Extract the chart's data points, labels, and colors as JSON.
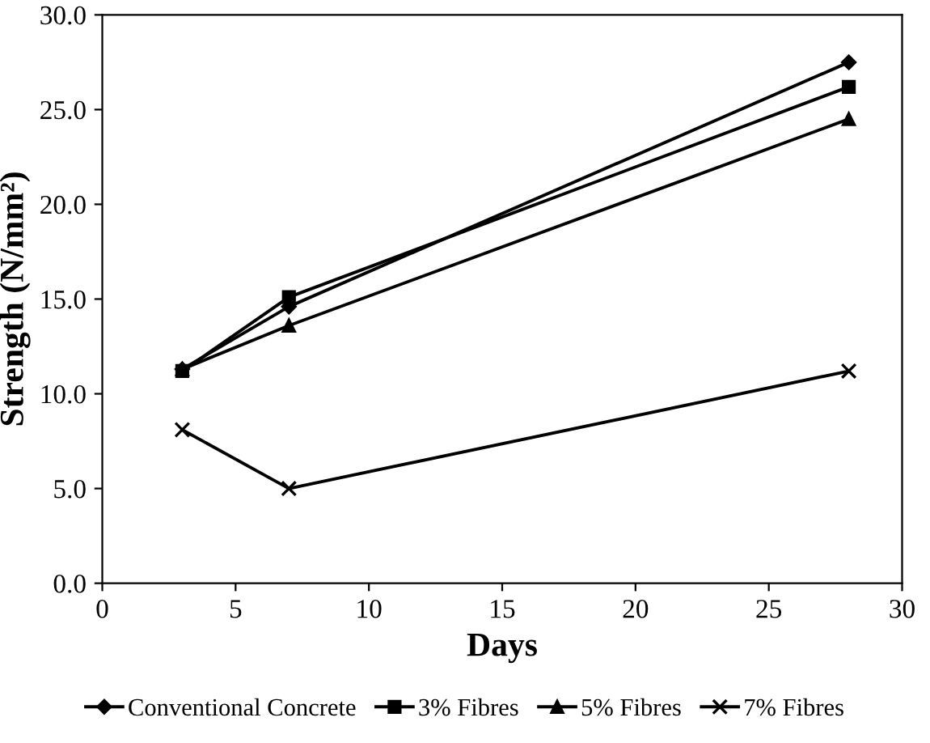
{
  "chart_data": {
    "type": "line",
    "xlabel": "Days",
    "ylabel": "Strength (N/mm²)",
    "x": [
      3,
      7,
      28
    ],
    "series": [
      {
        "name": "Conventional Concrete",
        "color": "#000000",
        "marker": "diamond",
        "values": [
          11.3,
          14.6,
          27.5
        ]
      },
      {
        "name": "3% Fibres",
        "color": "#000000",
        "marker": "square",
        "values": [
          11.2,
          15.1,
          26.2
        ]
      },
      {
        "name": "5% Fibres",
        "color": "#000000",
        "marker": "triangle",
        "values": [
          11.3,
          13.6,
          24.5
        ]
      },
      {
        "name": "7% Fibres",
        "color": "#000000",
        "marker": "cross",
        "values": [
          8.1,
          5.0,
          11.2
        ]
      }
    ],
    "xlim": [
      0,
      30
    ],
    "xticks": [
      0,
      5,
      10,
      15,
      20,
      25,
      30
    ],
    "ylim": [
      0,
      30
    ],
    "yticks": [
      {
        "value": 0,
        "label": "0.0"
      },
      {
        "value": 5,
        "label": "5.0"
      },
      {
        "value": 10,
        "label": "10.0"
      },
      {
        "value": 15,
        "label": "15.0"
      },
      {
        "value": 20,
        "label": "20.0"
      },
      {
        "value": 25,
        "label": "25.0"
      },
      {
        "value": 30,
        "label": "30.0"
      }
    ],
    "grid": false,
    "legend": "bottom",
    "line_style": "solid"
  }
}
